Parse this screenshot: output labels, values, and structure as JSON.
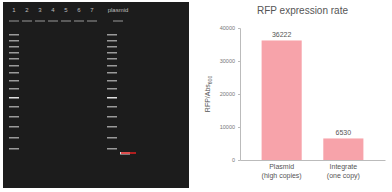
{
  "gel": {
    "lane_labels": [
      "1",
      "2",
      "3",
      "4",
      "5",
      "6",
      "7",
      "plasmid"
    ]
  },
  "chart_data": {
    "type": "bar",
    "title": "RFP expression rate",
    "y_label": "RFP/Abs600",
    "categories": [
      "Plasmid (high copies)",
      "Integrate (one copy)"
    ],
    "values": [
      36222,
      6530
    ],
    "color": "#f7a3aa",
    "ylim": [
      0,
      40000
    ],
    "yticks": [
      0,
      10000,
      20000,
      30000,
      40000
    ],
    "grid": false,
    "data_labels": true
  }
}
